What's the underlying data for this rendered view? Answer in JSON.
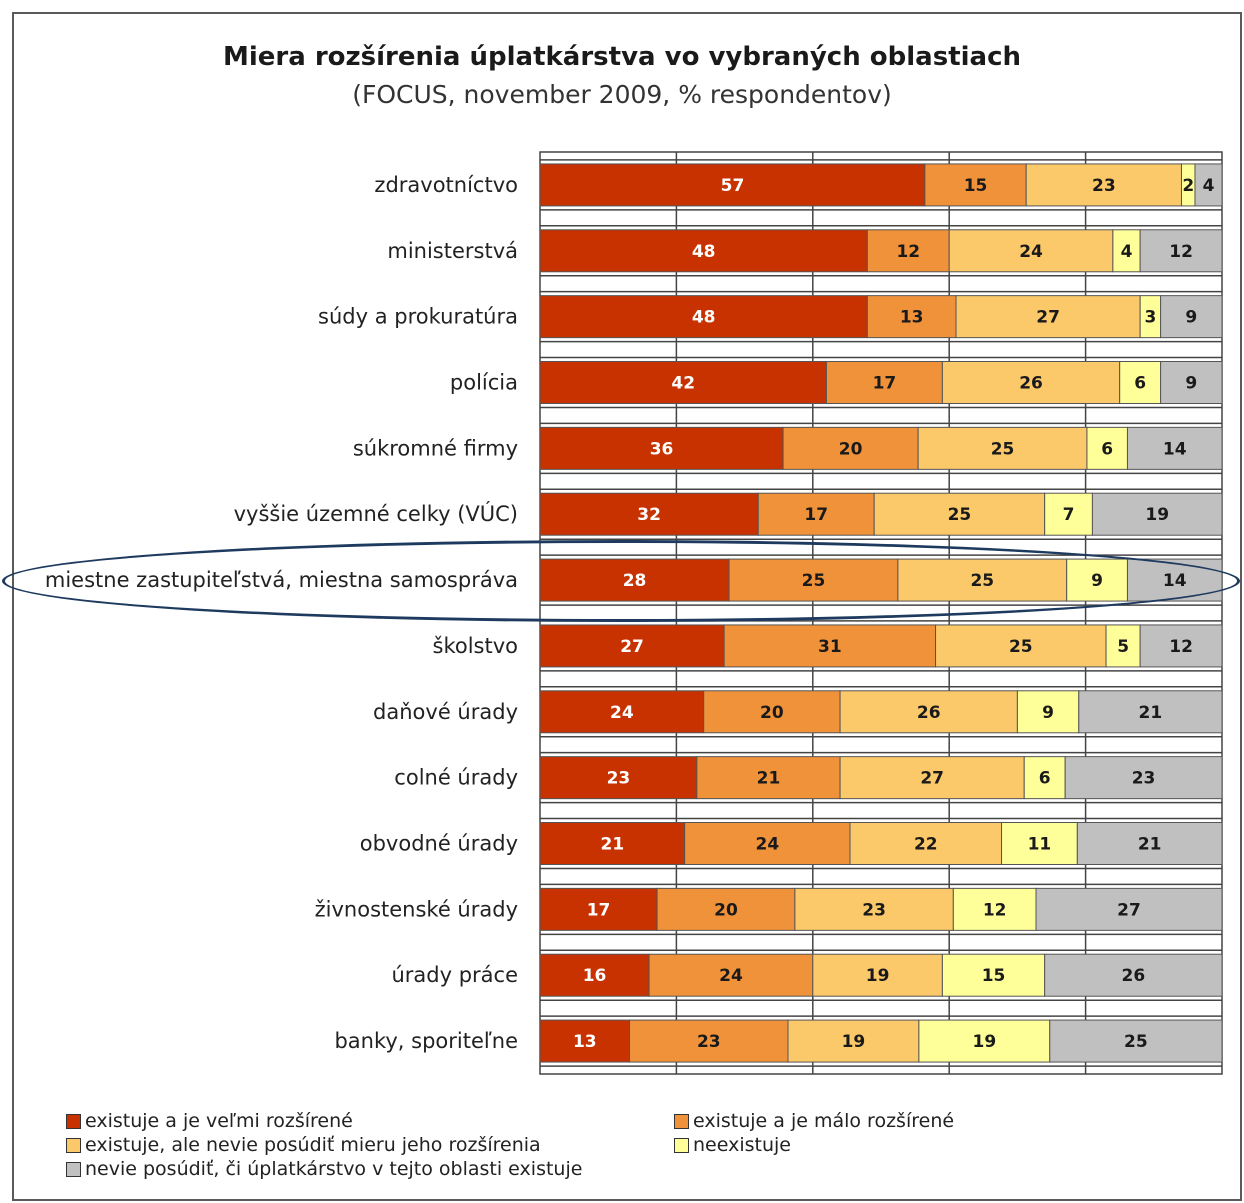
{
  "chart_data": {
    "type": "bar",
    "orientation": "horizontal-stacked",
    "title": "Miera rozšírenia úplatkárstva vo vybraných oblastiach",
    "subtitle": "(FOCUS, november 2009, % respondentov)",
    "categories": [
      "zdravotníctvo",
      "ministerstvá",
      "súdy a prokuratúra",
      "polícia",
      "súkromné firmy",
      "vyššie územné celky (VÚC)",
      "miestne zastupiteľstvá, miestna samospráva",
      "školstvo",
      "daňové úrady",
      "colné úrady",
      "obvodné úrady",
      "živnostenské úrady",
      "úrady práce",
      "banky, sporiteľne"
    ],
    "series": [
      {
        "name": "existuje a je veľmi rozšírené",
        "color": "#c83200",
        "label_color": "#ffffff",
        "values": [
          57,
          48,
          48,
          42,
          36,
          32,
          28,
          27,
          24,
          23,
          21,
          17,
          16,
          13
        ]
      },
      {
        "name": "existuje a je málo rozšírené",
        "color": "#f0923a",
        "label_color": "#1a1a1a",
        "values": [
          15,
          12,
          13,
          17,
          20,
          17,
          25,
          31,
          20,
          21,
          24,
          20,
          24,
          23
        ]
      },
      {
        "name": "existuje, ale nevie posúdiť mieru jeho rozšírenia",
        "color": "#fbc86a",
        "label_color": "#1a1a1a",
        "values": [
          23,
          24,
          27,
          26,
          25,
          25,
          25,
          25,
          26,
          27,
          22,
          23,
          19,
          19
        ]
      },
      {
        "name": "neexistuje",
        "color": "#ffff99",
        "label_color": "#1a1a1a",
        "values": [
          2,
          4,
          3,
          6,
          6,
          7,
          9,
          5,
          9,
          6,
          11,
          12,
          15,
          19
        ]
      },
      {
        "name": "nevie posúdiť, či úplatkárstvo v tejto oblasti existuje",
        "color": "#c0c0c0",
        "label_color": "#1a1a1a",
        "values": [
          4,
          12,
          9,
          9,
          14,
          19,
          14,
          12,
          21,
          23,
          21,
          27,
          26,
          25
        ]
      }
    ],
    "xlim": [
      0,
      100
    ],
    "grid": true,
    "legend_position": "bottom",
    "highlighted_category": "miestne zastupiteľstvá, miestna samospráva"
  }
}
